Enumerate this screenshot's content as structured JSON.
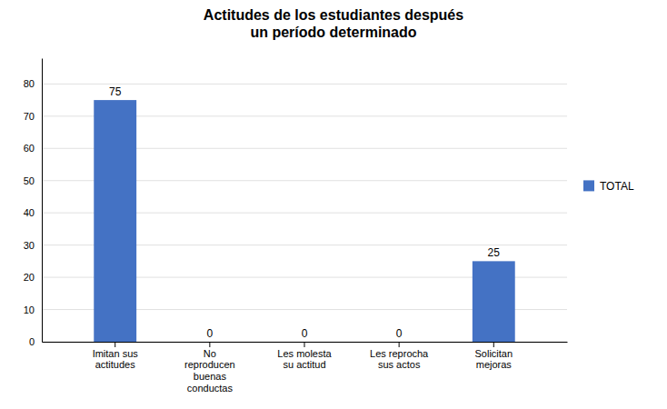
{
  "chart_data": {
    "type": "bar",
    "title": "Actitudes de los estudiantes después\nun período determinado",
    "categories": [
      "Imitan sus\nactitudes",
      "No\nreproducen\nbuenas\nconductas",
      "Les molesta\nsu actitud",
      "Les reprocha\nsus actos",
      "Solicitan\nmejoras"
    ],
    "series": [
      {
        "name": "TOTAL",
        "color": "#4472C4",
        "values": [
          75,
          0,
          0,
          0,
          25
        ]
      }
    ],
    "ylim": [
      0,
      88
    ],
    "yticks": [
      0,
      10,
      20,
      30,
      40,
      50,
      60,
      70,
      80
    ],
    "grid": true,
    "legend": "right",
    "data_labels": true
  }
}
